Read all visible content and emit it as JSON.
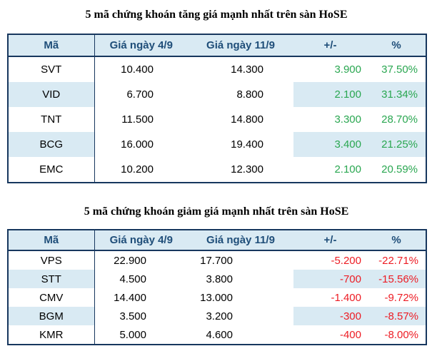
{
  "colors": {
    "page_background": "#ffffff",
    "table_border": "#17375e",
    "header_background": "#d9eaf3",
    "header_text": "#1f4e79",
    "alt_row_shade": "#d9eaf3",
    "positive_value": "#2aa751",
    "negative_value": "#ed1c24",
    "body_text": "#000000"
  },
  "tables": [
    {
      "title": "5 mã chứng khoán tăng giá mạnh nhất trên sàn HoSE",
      "direction": "up",
      "columns": [
        "Mã",
        "Giá ngày 4/9",
        "Giá ngày 11/9",
        "+/-",
        "%"
      ],
      "rows": [
        {
          "ticker": "SVT",
          "price_start": "10.400",
          "price_end": "14.300",
          "change": "3.900",
          "pct": "37.50%"
        },
        {
          "ticker": "VID",
          "price_start": "6.700",
          "price_end": "8.800",
          "change": "2.100",
          "pct": "31.34%"
        },
        {
          "ticker": "TNT",
          "price_start": "11.500",
          "price_end": "14.800",
          "change": "3.300",
          "pct": "28.70%"
        },
        {
          "ticker": "BCG",
          "price_start": "16.000",
          "price_end": "19.400",
          "change": "3.400",
          "pct": "21.25%"
        },
        {
          "ticker": "EMC",
          "price_start": "10.200",
          "price_end": "12.300",
          "change": "2.100",
          "pct": "20.59%"
        }
      ]
    },
    {
      "title": "5 mã chứng khoán giảm giá mạnh nhất trên sàn HoSE",
      "direction": "down",
      "columns": [
        "Mã",
        "Giá ngày 4/9",
        "Giá ngày 11/9",
        "+/-",
        "%"
      ],
      "rows": [
        {
          "ticker": "VPS",
          "price_start": "22.900",
          "price_end": "17.700",
          "change": "-5.200",
          "pct": "-22.71%"
        },
        {
          "ticker": "STT",
          "price_start": "4.500",
          "price_end": "3.800",
          "change": "-700",
          "pct": "-15.56%"
        },
        {
          "ticker": "CMV",
          "price_start": "14.400",
          "price_end": "13.000",
          "change": "-1.400",
          "pct": "-9.72%"
        },
        {
          "ticker": "BGM",
          "price_start": "3.500",
          "price_end": "3.200",
          "change": "-300",
          "pct": "-8.57%"
        },
        {
          "ticker": "KMR",
          "price_start": "5.000",
          "price_end": "4.600",
          "change": "-400",
          "pct": "-8.00%"
        }
      ]
    }
  ]
}
